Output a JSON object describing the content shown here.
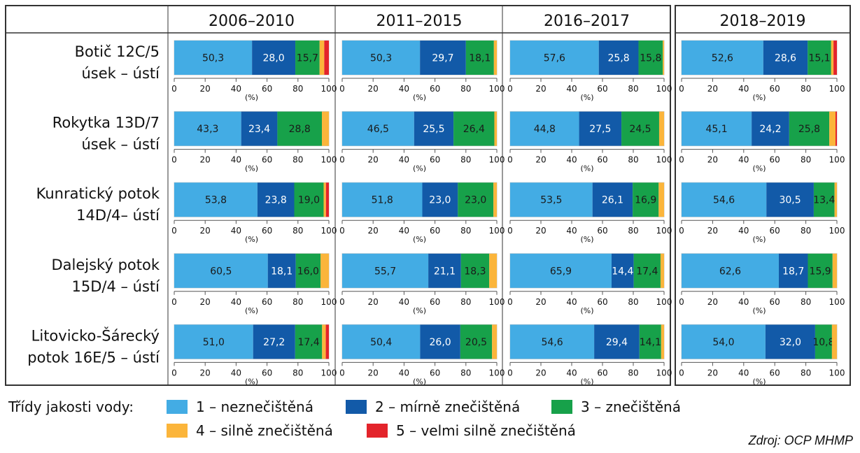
{
  "colors": {
    "classes": [
      "#43ace4",
      "#125aa8",
      "#17a14a",
      "#fbb53b",
      "#e3242b"
    ],
    "grid": "#555555",
    "frame": "#333333"
  },
  "chart_data": {
    "type": "bar",
    "orientation": "horizontal-stacked",
    "periods": [
      "2006–2010",
      "2011–2015",
      "2016–2017",
      "2018–2019"
    ],
    "sites": [
      {
        "line1": "Botič 12C/5",
        "line2": "úsek – ústí"
      },
      {
        "line1": "Rokytka 13D/7",
        "line2": "úsek – ústí"
      },
      {
        "line1": "Kunratický potok",
        "line2": "14D/4– ústí"
      },
      {
        "line1": "Dalejský potok",
        "line2": "15D/4 – ústí"
      },
      {
        "line1": "Litovicko-Šárecký",
        "line2": "potok 16E/5 – ústí"
      }
    ],
    "series": [
      {
        "name": "1 – neznečištěná"
      },
      {
        "name": "2 – mírně znečištěná"
      },
      {
        "name": "3 – znečištěná"
      },
      {
        "name": "4 – silně znečištěná"
      },
      {
        "name": "5 – velmi silně znečištěná"
      }
    ],
    "values": [
      [
        [
          50.3,
          28.0,
          15.7,
          3.0,
          3.0
        ],
        [
          50.3,
          29.7,
          18.1,
          1.9,
          0
        ],
        [
          57.6,
          25.8,
          15.8,
          0.8,
          0
        ],
        [
          52.6,
          28.6,
          15.1,
          1.5,
          2.2
        ]
      ],
      [
        [
          43.3,
          23.4,
          28.8,
          4.5,
          0
        ],
        [
          46.5,
          25.5,
          26.4,
          1.6,
          0
        ],
        [
          44.8,
          27.5,
          24.5,
          3.2,
          0
        ],
        [
          45.1,
          24.2,
          25.8,
          4.0,
          0.9
        ]
      ],
      [
        [
          53.8,
          23.8,
          19.0,
          1.5,
          1.9
        ],
        [
          51.8,
          23.0,
          23.0,
          2.2,
          0
        ],
        [
          53.5,
          26.1,
          16.9,
          3.5,
          0
        ],
        [
          54.6,
          30.5,
          13.4,
          1.5,
          0
        ]
      ],
      [
        [
          60.5,
          18.1,
          16.0,
          5.4,
          0
        ],
        [
          55.7,
          21.1,
          18.3,
          4.9,
          0
        ],
        [
          65.9,
          14.4,
          17.4,
          2.3,
          0
        ],
        [
          62.6,
          18.7,
          15.9,
          2.8,
          0
        ]
      ],
      [
        [
          51.0,
          27.2,
          17.4,
          2.4,
          2.0
        ],
        [
          50.4,
          26.0,
          20.5,
          3.1,
          0
        ],
        [
          54.6,
          29.4,
          14.1,
          1.9,
          0
        ],
        [
          54.0,
          32.0,
          10.8,
          3.2,
          0
        ]
      ]
    ],
    "labels": [
      [
        [
          "50,3",
          "28,0",
          "15,7"
        ],
        [
          "50,3",
          "29,7",
          "18,1"
        ],
        [
          "57,6",
          "25,8",
          "15,8"
        ],
        [
          "52,6",
          "28,6",
          "15,1"
        ]
      ],
      [
        [
          "43,3",
          "23,4",
          "28,8"
        ],
        [
          "46,5",
          "25,5",
          "26,4"
        ],
        [
          "44,8",
          "27,5",
          "24,5"
        ],
        [
          "45,1",
          "24,2",
          "25,8"
        ]
      ],
      [
        [
          "53,8",
          "23,8",
          "19,0"
        ],
        [
          "51,8",
          "23,0",
          "23,0"
        ],
        [
          "53,5",
          "26,1",
          "16,9"
        ],
        [
          "54,6",
          "30,5",
          "13,4"
        ]
      ],
      [
        [
          "60,5",
          "18,1",
          "16,0"
        ],
        [
          "55,7",
          "21,1",
          "18,3"
        ],
        [
          "65,9",
          "14,4",
          "17,4"
        ],
        [
          "62,6",
          "18,7",
          "15,9"
        ]
      ],
      [
        [
          "51,0",
          "27,2",
          "17,4"
        ],
        [
          "50,4",
          "26,0",
          "20,5"
        ],
        [
          "54,6",
          "29,4",
          "14,1"
        ],
        [
          "54,0",
          "32,0",
          "10,8"
        ]
      ]
    ],
    "xticks": [
      "0",
      "20",
      "40",
      "60",
      "80",
      "100"
    ],
    "xunit": "(%)",
    "xlim": [
      0,
      100
    ]
  },
  "legend": {
    "title": "Třídy jakosti vody:"
  },
  "source": "Zdroj: OCP MHMP"
}
